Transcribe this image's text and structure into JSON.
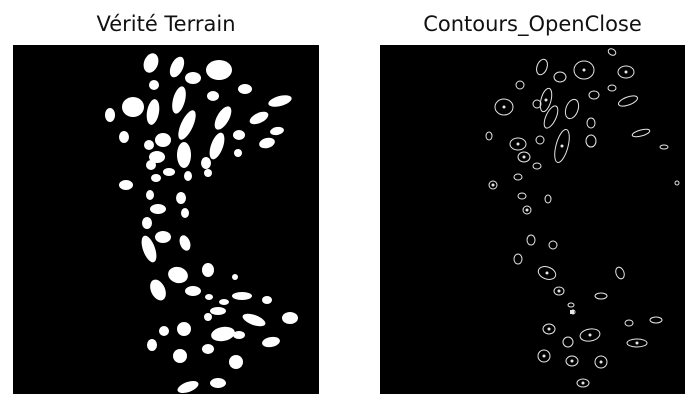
{
  "figure": {
    "left_title": "Vérité Terrain",
    "right_title": "Contours_OpenClose",
    "colors": {
      "background": "#000000",
      "mask": "#ffffff",
      "contour": "#e6e6e6",
      "page": "#ffffff"
    }
  }
}
